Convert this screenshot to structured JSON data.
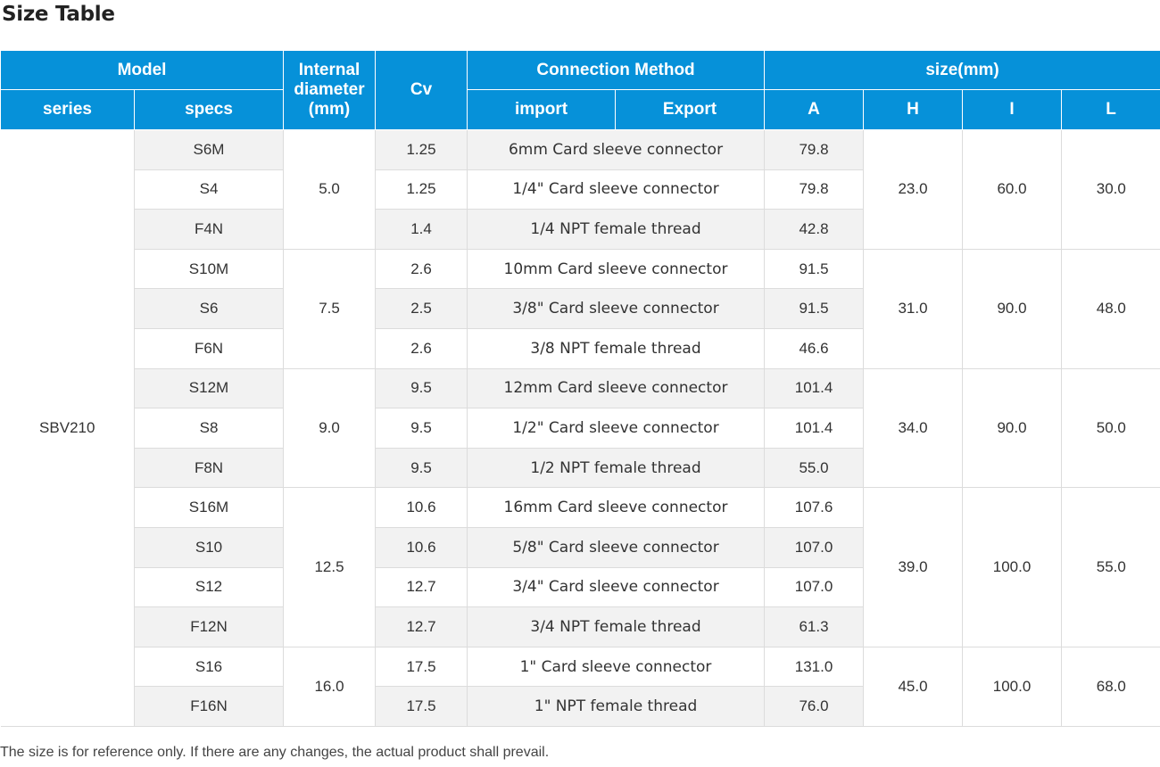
{
  "title": "Size Table",
  "header": {
    "model": "Model",
    "internal_diameter": "Internal diameter (mm)",
    "cv": "Cv",
    "connection_method": "Connection Method",
    "size": "size(mm)",
    "series": "series",
    "specs": "specs",
    "import": "import",
    "export": "Export",
    "a": "A",
    "h": "H",
    "i": "I",
    "l": "L"
  },
  "series": "SBV210",
  "groups": [
    {
      "diameter": "5.0",
      "h": "23.0",
      "i": "60.0",
      "l": "30.0",
      "rows": [
        {
          "spec": "S6M",
          "cv": "1.25",
          "connection": "6mm Card sleeve connector",
          "a": "79.8"
        },
        {
          "spec": "S4",
          "cv": "1.25",
          "connection": "1/4\" Card sleeve connector",
          "a": "79.8"
        },
        {
          "spec": "F4N",
          "cv": "1.4",
          "connection": "1/4 NPT female thread",
          "a": "42.8"
        }
      ]
    },
    {
      "diameter": "7.5",
      "h": "31.0",
      "i": "90.0",
      "l": "48.0",
      "rows": [
        {
          "spec": "S10M",
          "cv": "2.6",
          "connection": "10mm Card sleeve connector",
          "a": "91.5"
        },
        {
          "spec": "S6",
          "cv": "2.5",
          "connection": "3/8\" Card sleeve connector",
          "a": "91.5"
        },
        {
          "spec": "F6N",
          "cv": "2.6",
          "connection": "3/8 NPT female thread",
          "a": "46.6"
        }
      ]
    },
    {
      "diameter": "9.0",
      "h": "34.0",
      "i": "90.0",
      "l": "50.0",
      "rows": [
        {
          "spec": "S12M",
          "cv": "9.5",
          "connection": "12mm Card sleeve connector",
          "a": "101.4"
        },
        {
          "spec": "S8",
          "cv": "9.5",
          "connection": "1/2\" Card sleeve connector",
          "a": "101.4"
        },
        {
          "spec": "F8N",
          "cv": "9.5",
          "connection": "1/2 NPT female thread",
          "a": "55.0"
        }
      ]
    },
    {
      "diameter": "12.5",
      "h": "39.0",
      "i": "100.0",
      "l": "55.0",
      "rows": [
        {
          "spec": "S16M",
          "cv": "10.6",
          "connection": "16mm Card sleeve connector",
          "a": "107.6"
        },
        {
          "spec": "S10",
          "cv": "10.6",
          "connection": "5/8\" Card sleeve connector",
          "a": "107.0"
        },
        {
          "spec": "S12",
          "cv": "12.7",
          "connection": "3/4\" Card sleeve connector",
          "a": "107.0"
        },
        {
          "spec": "F12N",
          "cv": "12.7",
          "connection": "3/4 NPT female thread",
          "a": "61.3"
        }
      ]
    },
    {
      "diameter": "16.0",
      "h": "45.0",
      "i": "100.0",
      "l": "68.0",
      "rows": [
        {
          "spec": "S16",
          "cv": "17.5",
          "connection": "1\" Card sleeve connector",
          "a": "131.0"
        },
        {
          "spec": "F16N",
          "cv": "17.5",
          "connection": "1\" NPT female thread",
          "a": "76.0"
        }
      ]
    }
  ],
  "footnote": "The size is for reference only. If there are any changes, the actual product shall prevail."
}
